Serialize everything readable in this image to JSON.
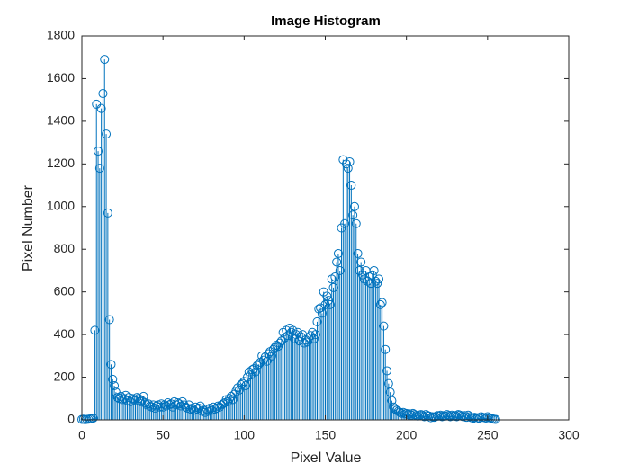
{
  "chart_data": {
    "type": "stem",
    "title": "Image Histogram",
    "xlabel": "Pixel Value",
    "ylabel": "Pixel Number",
    "color": "#0072bd",
    "xlim": [
      0,
      300
    ],
    "xticks": [
      0,
      50,
      100,
      150,
      200,
      250,
      300
    ],
    "ylim": [
      0,
      1800
    ],
    "yticks": [
      0,
      200,
      400,
      600,
      800,
      1000,
      1200,
      1400,
      1600,
      1800
    ],
    "x": [
      0,
      1,
      2,
      3,
      4,
      5,
      6,
      7,
      8,
      9,
      10,
      11,
      12,
      13,
      14,
      15,
      16,
      17,
      18,
      19,
      20,
      21,
      22,
      23,
      24,
      25,
      26,
      27,
      28,
      29,
      30,
      31,
      32,
      33,
      34,
      35,
      36,
      37,
      38,
      39,
      40,
      41,
      42,
      43,
      44,
      45,
      46,
      47,
      48,
      49,
      50,
      51,
      52,
      53,
      54,
      55,
      56,
      57,
      58,
      59,
      60,
      61,
      62,
      63,
      64,
      65,
      66,
      67,
      68,
      69,
      70,
      71,
      72,
      73,
      74,
      75,
      76,
      77,
      78,
      79,
      80,
      81,
      82,
      83,
      84,
      85,
      86,
      87,
      88,
      89,
      90,
      91,
      92,
      93,
      94,
      95,
      96,
      97,
      98,
      99,
      100,
      101,
      102,
      103,
      104,
      105,
      106,
      107,
      108,
      109,
      110,
      111,
      112,
      113,
      114,
      115,
      116,
      117,
      118,
      119,
      120,
      121,
      122,
      123,
      124,
      125,
      126,
      127,
      128,
      129,
      130,
      131,
      132,
      133,
      134,
      135,
      136,
      137,
      138,
      139,
      140,
      141,
      142,
      143,
      144,
      145,
      146,
      147,
      148,
      149,
      150,
      151,
      152,
      153,
      154,
      155,
      156,
      157,
      158,
      159,
      160,
      161,
      162,
      163,
      164,
      165,
      166,
      167,
      168,
      169,
      170,
      171,
      172,
      173,
      174,
      175,
      176,
      177,
      178,
      179,
      180,
      181,
      182,
      183,
      184,
      185,
      186,
      187,
      188,
      189,
      190,
      191,
      192,
      193,
      194,
      195,
      196,
      197,
      198,
      199,
      200,
      201,
      202,
      203,
      204,
      205,
      206,
      207,
      208,
      209,
      210,
      211,
      212,
      213,
      214,
      215,
      216,
      217,
      218,
      219,
      220,
      221,
      222,
      223,
      224,
      225,
      226,
      227,
      228,
      229,
      230,
      231,
      232,
      233,
      234,
      235,
      236,
      237,
      238,
      239,
      240,
      241,
      242,
      243,
      244,
      245,
      246,
      247,
      248,
      249,
      250,
      251,
      252,
      253,
      254,
      255
    ],
    "values": [
      2,
      3,
      1,
      2,
      3,
      4,
      5,
      8,
      420,
      1480,
      1260,
      1180,
      1460,
      1530,
      1690,
      1340,
      970,
      470,
      260,
      190,
      160,
      130,
      105,
      100,
      110,
      95,
      100,
      115,
      90,
      105,
      85,
      100,
      95,
      90,
      105,
      100,
      85,
      90,
      110,
      80,
      70,
      75,
      65,
      60,
      70,
      55,
      65,
      70,
      60,
      75,
      60,
      70,
      65,
      80,
      70,
      75,
      60,
      85,
      70,
      80,
      75,
      65,
      85,
      70,
      60,
      55,
      70,
      50,
      55,
      45,
      60,
      50,
      55,
      65,
      40,
      45,
      35,
      50,
      40,
      55,
      45,
      60,
      50,
      55,
      65,
      60,
      70,
      75,
      80,
      95,
      85,
      100,
      110,
      95,
      120,
      135,
      150,
      140,
      165,
      170,
      180,
      160,
      200,
      225,
      210,
      235,
      240,
      225,
      255,
      260,
      270,
      300,
      280,
      295,
      275,
      310,
      320,
      300,
      330,
      340,
      350,
      345,
      360,
      370,
      410,
      385,
      420,
      395,
      430,
      410,
      420,
      380,
      400,
      410,
      370,
      390,
      400,
      360,
      375,
      365,
      385,
      395,
      410,
      380,
      400,
      460,
      520,
      525,
      500,
      600,
      540,
      580,
      560,
      540,
      660,
      620,
      670,
      740,
      780,
      700,
      900,
      1220,
      920,
      1200,
      1180,
      1210,
      1100,
      960,
      1000,
      920,
      780,
      700,
      740,
      680,
      660,
      700,
      650,
      670,
      640,
      680,
      700,
      650,
      640,
      660,
      540,
      550,
      440,
      330,
      230,
      170,
      130,
      90,
      60,
      50,
      45,
      40,
      35,
      30,
      35,
      28,
      30,
      25,
      28,
      22,
      30,
      25,
      20,
      18,
      22,
      25,
      20,
      15,
      25,
      20,
      18,
      10,
      15,
      12,
      15,
      20,
      18,
      22,
      15,
      20,
      18,
      25,
      20,
      15,
      22,
      18,
      20,
      15,
      25,
      22,
      18,
      15,
      20,
      12,
      22,
      15,
      10,
      8,
      12,
      5,
      10,
      8,
      15,
      12,
      10,
      8,
      15,
      10,
      8,
      5,
      3,
      2
    ]
  }
}
